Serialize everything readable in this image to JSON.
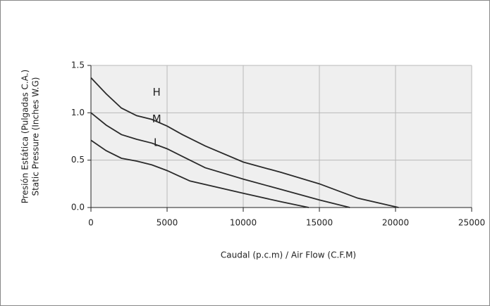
{
  "chart_data": {
    "type": "line",
    "xlabel": "Caudal (p.c.m) / Air Flow (C.F.M)",
    "ylabel": [
      "Presión Estática (Pulgadas C.A.)",
      "Static Pressure (Inches W.G)"
    ],
    "xlim": [
      0,
      25000
    ],
    "xticks": [
      0,
      5000,
      10000,
      15000,
      20000,
      25000
    ],
    "ylim": [
      0,
      1.5
    ],
    "yticks": [
      {
        "value": 0,
        "label": "0.0"
      },
      0.5,
      {
        "value": 1,
        "label": "1.0"
      },
      {
        "value": 1.5,
        "label": "1.5"
      }
    ],
    "grid": true,
    "series": [
      {
        "name": "H",
        "color": "#2a2a2a",
        "x": [
          0,
          1000,
          2000,
          3000,
          4000,
          5000,
          6000,
          7500,
          10000,
          12500,
          15000,
          17500,
          20200
        ],
        "values": [
          1.37,
          1.2,
          1.05,
          0.97,
          0.93,
          0.86,
          0.77,
          0.65,
          0.48,
          0.37,
          0.25,
          0.1,
          0
        ]
      },
      {
        "name": "M",
        "color": "#2a2a2a",
        "x": [
          0,
          1000,
          2000,
          3000,
          4000,
          5000,
          6000,
          7500,
          10000,
          12500,
          15000,
          17000
        ],
        "values": [
          1.0,
          0.87,
          0.77,
          0.72,
          0.68,
          0.62,
          0.54,
          0.42,
          0.3,
          0.19,
          0.08,
          0
        ]
      },
      {
        "name": "L",
        "color": "#2a2a2a",
        "x": [
          0,
          1000,
          2000,
          3000,
          4000,
          5000,
          6500,
          10000,
          12500,
          14300
        ],
        "values": [
          0.71,
          0.6,
          0.52,
          0.49,
          0.45,
          0.39,
          0.28,
          0.15,
          0.06,
          0
        ]
      }
    ]
  }
}
